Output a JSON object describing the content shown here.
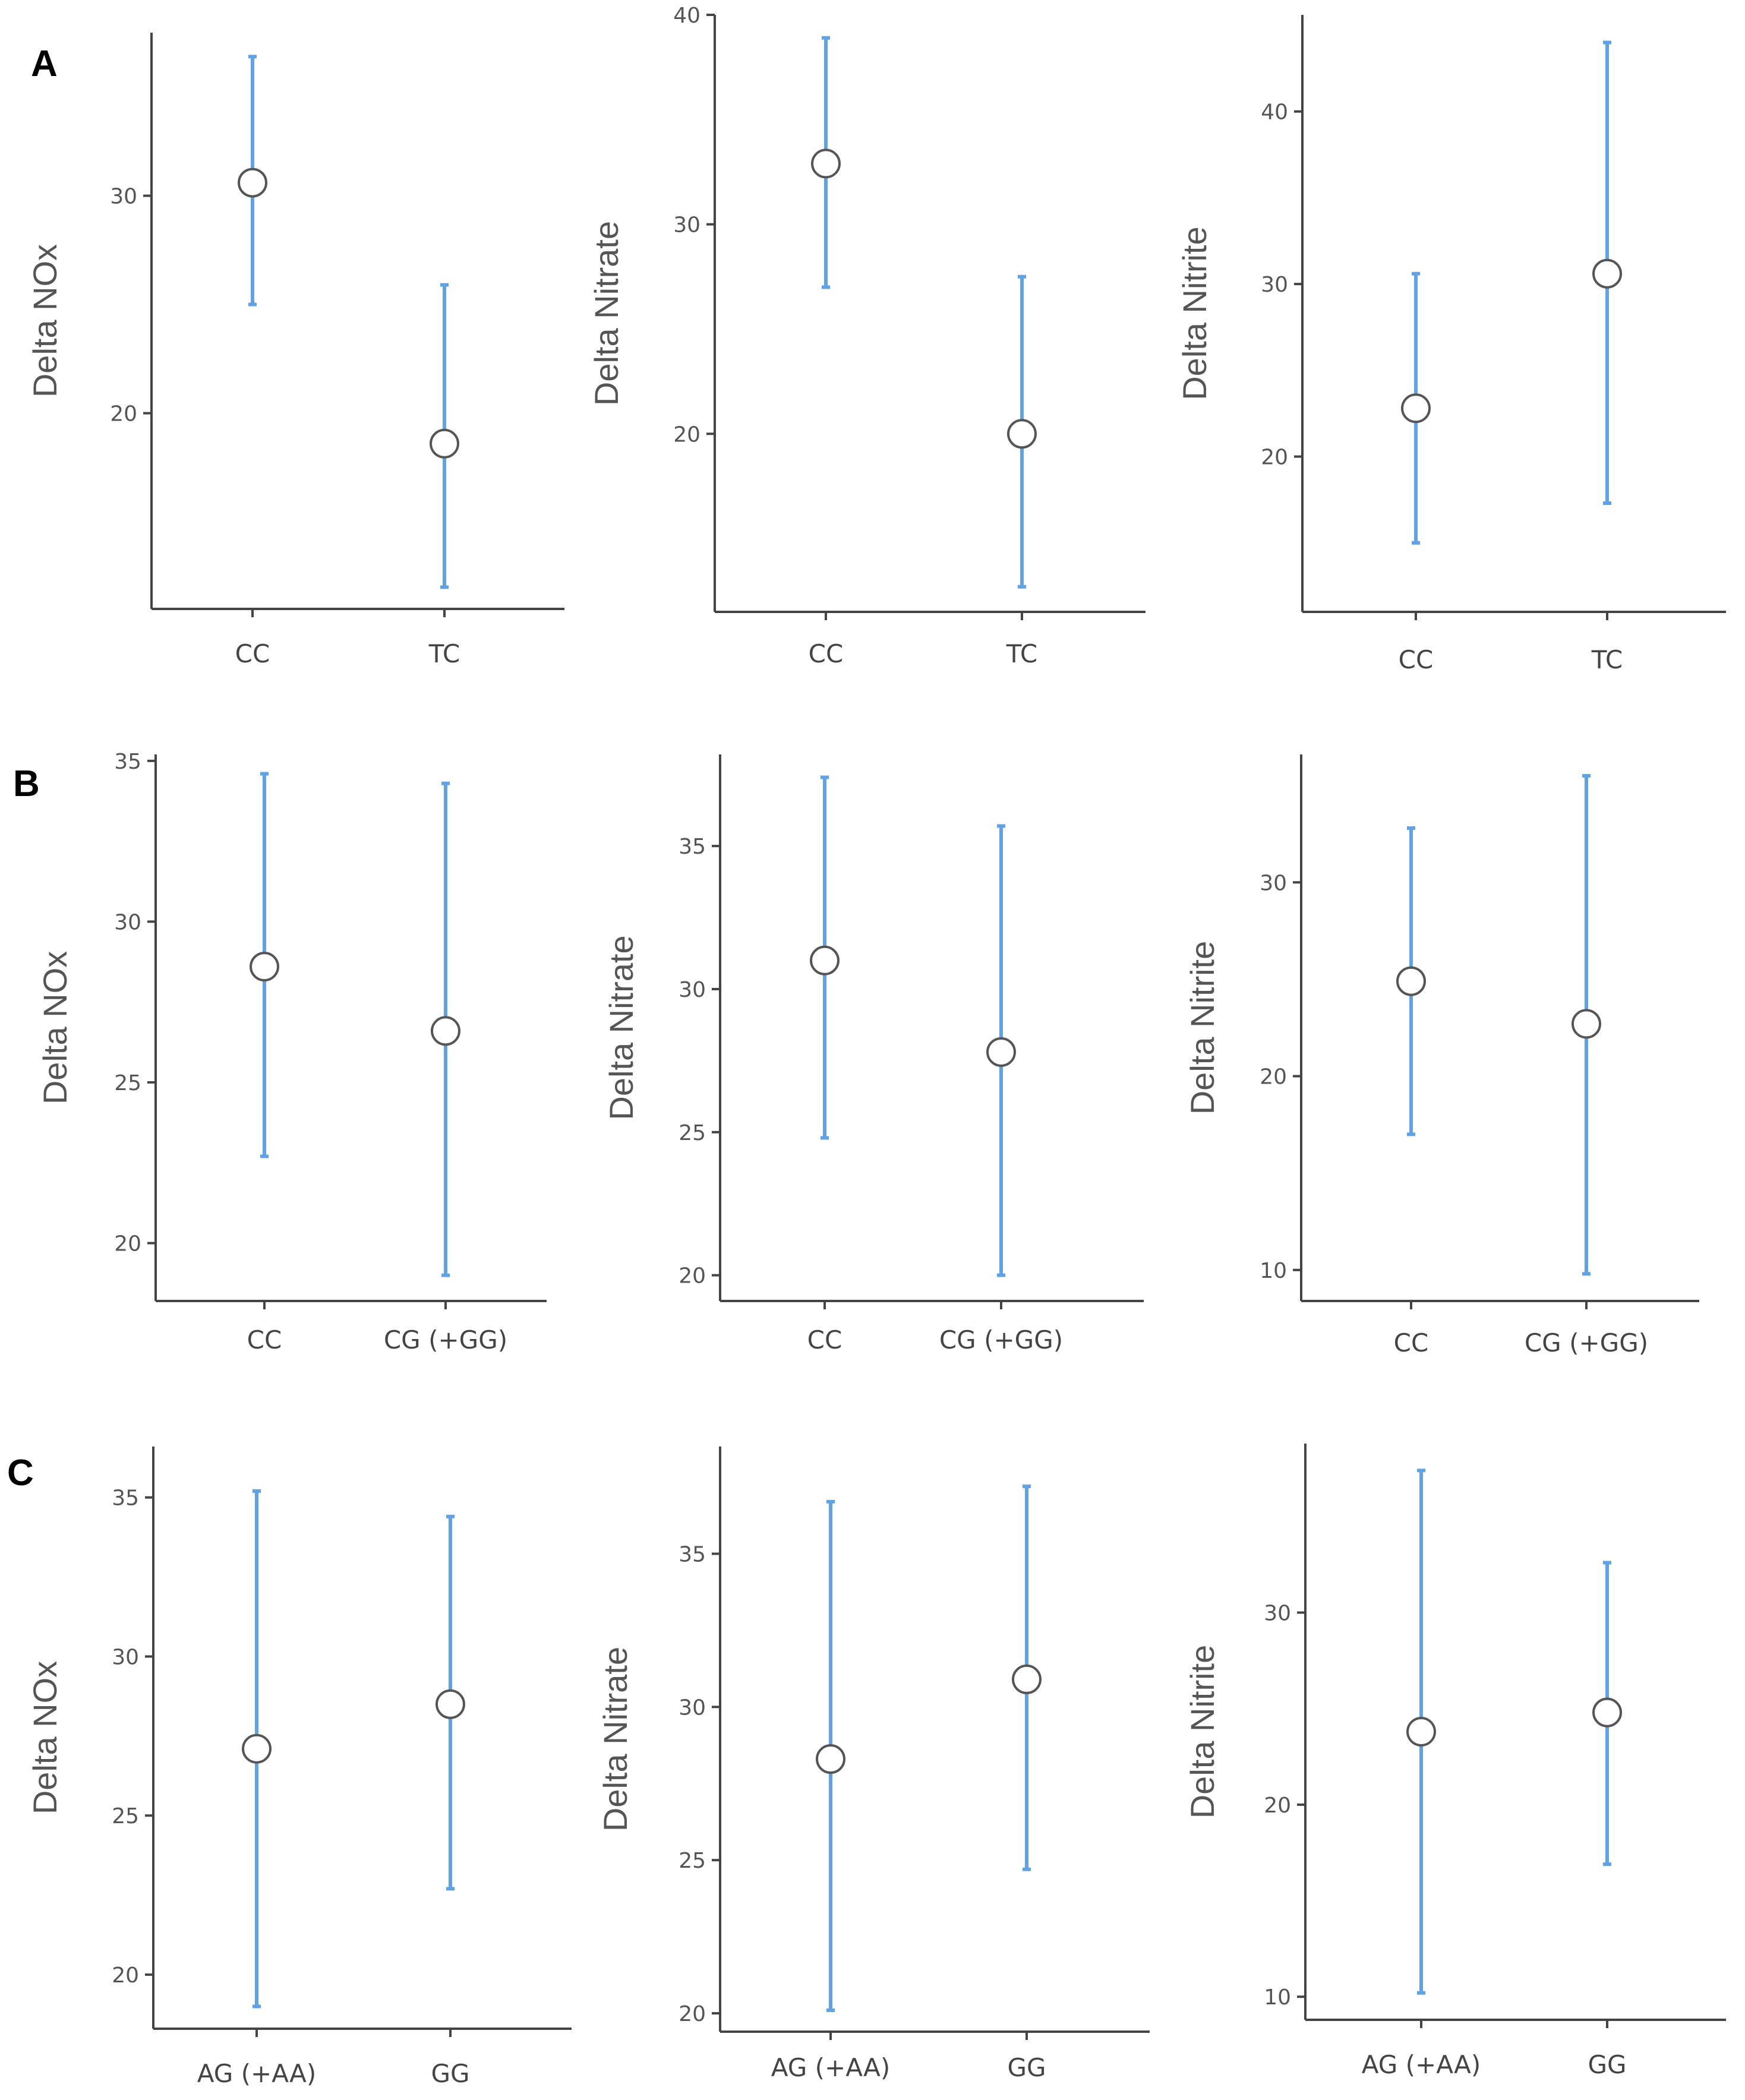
{
  "panel_labels": [
    "A",
    "B",
    "C"
  ],
  "chart_data": [
    {
      "type": "scatter",
      "panel": "A",
      "ylabel": "Delta NOx",
      "categories": [
        "CC",
        "TC"
      ],
      "means": [
        30.6,
        18.6
      ],
      "lower": [
        25.0,
        12.0
      ],
      "upper": [
        36.4,
        25.9
      ],
      "ylim": [
        11.0,
        37.5
      ],
      "yticks": [
        20,
        30
      ]
    },
    {
      "type": "scatter",
      "panel": "A",
      "ylabel": "Delta Nitrate",
      "categories": [
        "CC",
        "TC"
      ],
      "means": [
        32.9,
        20.0
      ],
      "lower": [
        27.0,
        12.7
      ],
      "upper": [
        38.9,
        27.5
      ],
      "ylim": [
        11.5,
        40.0
      ],
      "yticks": [
        20,
        30,
        40
      ]
    },
    {
      "type": "scatter",
      "panel": "A",
      "ylabel": "Delta Nitrite",
      "categories": [
        "CC",
        "TC"
      ],
      "means": [
        22.8,
        30.6
      ],
      "lower": [
        15.0,
        17.3
      ],
      "upper": [
        30.6,
        44.0
      ],
      "ylim": [
        11.0,
        45.6
      ],
      "yticks": [
        20,
        30,
        40
      ]
    },
    {
      "type": "scatter",
      "panel": "B",
      "ylabel": "Delta NOx",
      "categories": [
        "CC",
        "CG (+GG)"
      ],
      "means": [
        28.6,
        26.6
      ],
      "lower": [
        22.7,
        19.0
      ],
      "upper": [
        34.6,
        34.3
      ],
      "ylim": [
        18.2,
        35.2
      ],
      "yticks": [
        20,
        25,
        30,
        35
      ]
    },
    {
      "type": "scatter",
      "panel": "B",
      "ylabel": "Delta Nitrate",
      "categories": [
        "CC",
        "CG (+GG)"
      ],
      "means": [
        31.0,
        27.8
      ],
      "lower": [
        24.8,
        20.0
      ],
      "upper": [
        37.4,
        35.7
      ],
      "ylim": [
        19.1,
        38.2
      ],
      "yticks": [
        20,
        25,
        30,
        35
      ]
    },
    {
      "type": "scatter",
      "panel": "B",
      "ylabel": "Delta Nitrite",
      "categories": [
        "CC",
        "CG (+GG)"
      ],
      "means": [
        24.9,
        22.7
      ],
      "lower": [
        17.0,
        9.8
      ],
      "upper": [
        32.8,
        35.5
      ],
      "ylim": [
        8.4,
        36.6
      ],
      "yticks": [
        10,
        20,
        30
      ]
    },
    {
      "type": "scatter",
      "panel": "C",
      "ylabel": "Delta NOx",
      "categories": [
        "AG (+AA)",
        "GG"
      ],
      "means": [
        27.1,
        28.5
      ],
      "lower": [
        19.0,
        22.7
      ],
      "upper": [
        35.2,
        34.4
      ],
      "ylim": [
        18.3,
        36.6
      ],
      "yticks": [
        20,
        25,
        30,
        35
      ]
    },
    {
      "type": "scatter",
      "panel": "C",
      "ylabel": "Delta Nitrate",
      "categories": [
        "AG (+AA)",
        "GG"
      ],
      "means": [
        28.3,
        30.9
      ],
      "lower": [
        20.1,
        24.7
      ],
      "upper": [
        36.7,
        37.2
      ],
      "ylim": [
        19.4,
        38.5
      ],
      "yticks": [
        20,
        25,
        30,
        35
      ]
    },
    {
      "type": "scatter",
      "panel": "C",
      "ylabel": "Delta Nitrite",
      "categories": [
        "AG (+AA)",
        "GG"
      ],
      "means": [
        23.8,
        24.8
      ],
      "lower": [
        10.2,
        16.9
      ],
      "upper": [
        37.4,
        32.6
      ],
      "ylim": [
        8.8,
        38.8
      ],
      "yticks": [
        10,
        20,
        30
      ]
    }
  ]
}
